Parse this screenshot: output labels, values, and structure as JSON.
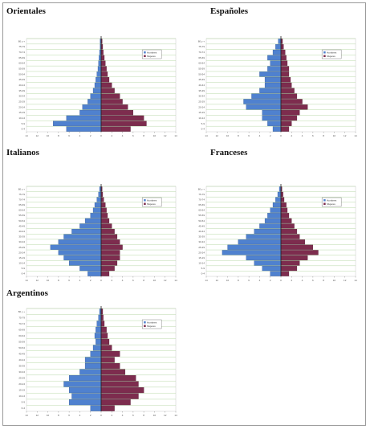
{
  "colors": {
    "hombres": "#4f81cf",
    "mujeres": "#7d2c4e",
    "grid": "#b8d8a8",
    "axis": "#222222"
  },
  "age_labels": [
    "0-4",
    "5-9",
    "10-14",
    "15-19",
    "20-24",
    "25-29",
    "30-34",
    "35-39",
    "40-44",
    "45-49",
    "50-54",
    "55-59",
    "60-64",
    "65-69",
    "70-74",
    "75-79",
    "80 y +"
  ],
  "legend": {
    "hombres": "Hombres",
    "mujeres": "Mujeres"
  },
  "chart_data": [
    {
      "type": "bar",
      "title": "Orientales",
      "categories": [
        "0-4",
        "5-9",
        "10-14",
        "15-19",
        "20-24",
        "25-29",
        "30-34",
        "35-39",
        "40-44",
        "45-49",
        "50-54",
        "55-59",
        "60-64",
        "65-69",
        "70-74",
        "75-79",
        "80 y +"
      ],
      "xlim": [
        -14,
        14
      ],
      "xticks": [
        "14",
        "12",
        "10",
        "8",
        "6",
        "4",
        "2",
        "0",
        "2",
        "4",
        "6",
        "8",
        "10",
        "12",
        "14"
      ],
      "series": [
        {
          "name": "Hombres",
          "values": [
            6.5,
            9,
            6.5,
            4,
            3.5,
            2.5,
            2,
            1.5,
            1.2,
            1,
            0.8,
            0.6,
            0.5,
            0.4,
            0.3,
            0.2,
            0.2
          ]
        },
        {
          "name": "Mujeres",
          "values": [
            5.5,
            8.5,
            8,
            6,
            5,
            4,
            3.5,
            2.5,
            2,
            1.5,
            1.2,
            1,
            0.8,
            0.6,
            0.4,
            0.3,
            0.2
          ]
        }
      ],
      "legend_position": "top-right"
    },
    {
      "type": "bar",
      "title": "Españoles",
      "categories": [
        "0-4",
        "5-9",
        "10-14",
        "15-19",
        "20-24",
        "25-29",
        "30-34",
        "35-39",
        "40-44",
        "45-49",
        "50-54",
        "55-59",
        "60-64",
        "65-69",
        "70-74",
        "75-79",
        "80 y +"
      ],
      "xlim": [
        -14,
        14
      ],
      "xticks": [
        "14",
        "12",
        "10",
        "8",
        "6",
        "4",
        "2",
        "0",
        "2",
        "4",
        "6",
        "8",
        "10",
        "12",
        "14"
      ],
      "series": [
        {
          "name": "Hombres",
          "values": [
            1.5,
            2.5,
            3.5,
            3.5,
            6.5,
            7,
            5.5,
            4,
            3,
            3,
            4,
            2.5,
            2,
            2.5,
            1.5,
            1,
            0.5
          ]
        },
        {
          "name": "Mujeres",
          "values": [
            1.5,
            2,
            3,
            3.5,
            5,
            4,
            3,
            2.5,
            2,
            1.8,
            1.5,
            1.5,
            1.2,
            1,
            0.8,
            0.5,
            0.3
          ]
        }
      ],
      "legend_position": "top-right"
    },
    {
      "type": "bar",
      "title": "Italianos",
      "categories": [
        "0-4",
        "5-9",
        "10-14",
        "15-19",
        "20-24",
        "25-29",
        "30-34",
        "35-39",
        "40-44",
        "45-49",
        "50-54",
        "55-59",
        "60-64",
        "65-69",
        "70-74",
        "75-79",
        "80 y +"
      ],
      "xlim": [
        -14,
        14
      ],
      "xticks": [
        "14",
        "12",
        "10",
        "8",
        "6",
        "4",
        "2",
        "0",
        "2",
        "4",
        "6",
        "8",
        "10",
        "12",
        "14"
      ],
      "series": [
        {
          "name": "Hombres",
          "values": [
            2.5,
            4,
            6,
            7,
            8,
            9.5,
            8,
            7,
            5.5,
            4,
            3,
            2,
            1.5,
            1.2,
            0.8,
            0.5,
            0.3
          ]
        },
        {
          "name": "Mujeres",
          "values": [
            1.5,
            2.5,
            3,
            3.5,
            3.5,
            4,
            3.5,
            3,
            2.5,
            2,
            1.5,
            1.2,
            1,
            0.8,
            0.5,
            0.3,
            0.2
          ]
        }
      ],
      "legend_position": "top-right"
    },
    {
      "type": "bar",
      "title": "Franceses",
      "categories": [
        "0-4",
        "5-9",
        "10-14",
        "15-19",
        "20-24",
        "25-29",
        "30-34",
        "35-39",
        "40-44",
        "45-49",
        "50-54",
        "55-59",
        "60-64",
        "65-69",
        "70-74",
        "75-79",
        "80 y +"
      ],
      "xlim": [
        -14,
        14
      ],
      "xticks": [
        "14",
        "12",
        "10",
        "8",
        "6",
        "4",
        "2",
        "0",
        "2",
        "4",
        "6",
        "8",
        "10",
        "12",
        "14"
      ],
      "series": [
        {
          "name": "Hombres",
          "values": [
            2,
            3.5,
            5,
            6.5,
            11,
            10,
            8,
            6.5,
            5,
            4,
            3,
            2.5,
            2,
            1.5,
            1,
            0.6,
            0.3
          ]
        },
        {
          "name": "Mujeres",
          "values": [
            1.5,
            3,
            3.5,
            5,
            7,
            6,
            4.5,
            3.5,
            3,
            2.5,
            2,
            1.5,
            1.2,
            1,
            0.6,
            0.4,
            0.2
          ]
        }
      ],
      "legend_position": "top-right"
    },
    {
      "type": "bar",
      "title": "Argentinos",
      "categories": [
        "0-4",
        "5-9",
        "10-14",
        "15-19",
        "20-24",
        "25-29",
        "30-34",
        "35-39",
        "40-44",
        "45-49",
        "50-54",
        "55-59",
        "60-64",
        "65-69",
        "70-74",
        "75-79",
        "80 y +"
      ],
      "xlim": [
        -14,
        14
      ],
      "xticks": [
        "14",
        "12",
        "10",
        "8",
        "6",
        "4",
        "2",
        "0",
        "2",
        "4",
        "6",
        "8",
        "10",
        "12",
        "14"
      ],
      "series": [
        {
          "name": "Hombres",
          "values": [
            2,
            6,
            5.5,
            6,
            7,
            6,
            4,
            3,
            3,
            2,
            1.5,
            1,
            1.2,
            1,
            0.8,
            0.5,
            0.3
          ]
        },
        {
          "name": "Mujeres",
          "values": [
            2.5,
            5.5,
            7,
            8,
            7,
            6.5,
            4.5,
            3.5,
            2.5,
            3.5,
            2,
            1.5,
            1.2,
            1,
            0.6,
            0.4,
            0.3
          ]
        }
      ],
      "legend_position": "top-right"
    }
  ]
}
